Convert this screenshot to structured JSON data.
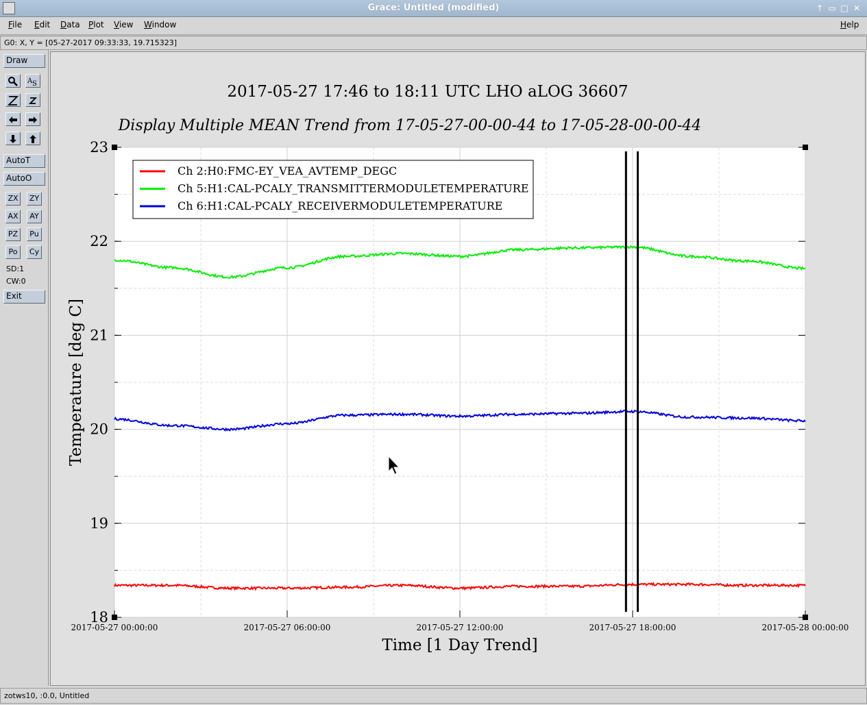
{
  "window": {
    "title": "Grace: Untitled (modified)",
    "controls": [
      "↑",
      "▭",
      "□",
      "✕"
    ]
  },
  "menu": {
    "items": [
      "File",
      "Edit",
      "Data",
      "Plot",
      "View",
      "Window"
    ],
    "help": "Help"
  },
  "coords": {
    "text": "G0: X, Y = [05-27-2017 09:33:33, 19.715323]"
  },
  "toolbar": {
    "draw": "Draw",
    "autoT": "AutoT",
    "autoO": "AutoO",
    "small_buttons": [
      "ZX",
      "ZY",
      "AX",
      "AY",
      "PZ",
      "Pu",
      "Po",
      "Cy"
    ],
    "sd": "SD:1",
    "cw": "CW:0",
    "exit": "Exit"
  },
  "status": {
    "text": "zotws10, :0.0, Untitled"
  },
  "chart_data": {
    "type": "line",
    "title": "2017-05-27 17:46 to 18:11 UTC LHO aLOG 36607",
    "subtitle": "Display Multiple MEAN Trend from 17-05-27-00-00-44 to 17-05-28-00-00-44",
    "xlabel": "Time [1 Day Trend]",
    "ylabel": "Temperature [deg C]",
    "xlim": [
      0,
      24
    ],
    "ylim": [
      18,
      23
    ],
    "yticks": [
      18,
      19,
      20,
      21,
      22,
      23
    ],
    "xticks": [
      0,
      6,
      12,
      18,
      24
    ],
    "xtick_labels": [
      "2017-05-27 00:00:00",
      "2017-05-27 06:00:00",
      "2017-05-27 12:00:00",
      "2017-05-27 18:00:00",
      "2017-05-28 00:00:00"
    ],
    "grid": true,
    "legend_position": "top-left",
    "series": [
      {
        "name": "Ch 2:H0:FMC-EY_VEA_AVTEMP_DEGC",
        "color": "#ff0000",
        "x": [
          0,
          2,
          4,
          6,
          8,
          10,
          12,
          14,
          16,
          18,
          20,
          22,
          24
        ],
        "y": [
          18.34,
          18.34,
          18.31,
          18.31,
          18.32,
          18.34,
          18.31,
          18.33,
          18.33,
          18.35,
          18.35,
          18.34,
          18.34
        ]
      },
      {
        "name": "Ch 5:H1:CAL-PCALY_TRANSMITTERMODULETEMPERATURE",
        "color": "#00ee00",
        "x": [
          0,
          2,
          4,
          6,
          8,
          10,
          12,
          14,
          16,
          18,
          20,
          22,
          24
        ],
        "y": [
          21.8,
          21.72,
          21.62,
          21.72,
          21.84,
          21.87,
          21.84,
          21.91,
          21.93,
          21.94,
          21.84,
          21.79,
          21.71
        ]
      },
      {
        "name": "Ch 6:H1:CAL-PCALY_RECEIVERMODULETEMPERATURE",
        "color": "#0000dd",
        "x": [
          0,
          2,
          4,
          6,
          8,
          10,
          12,
          14,
          16,
          18,
          20,
          22,
          24
        ],
        "y": [
          20.11,
          20.04,
          20.0,
          20.06,
          20.15,
          20.16,
          20.14,
          20.16,
          20.17,
          20.19,
          20.13,
          20.12,
          20.09
        ]
      }
    ],
    "markers_x": [
      17.77,
      18.18
    ]
  }
}
